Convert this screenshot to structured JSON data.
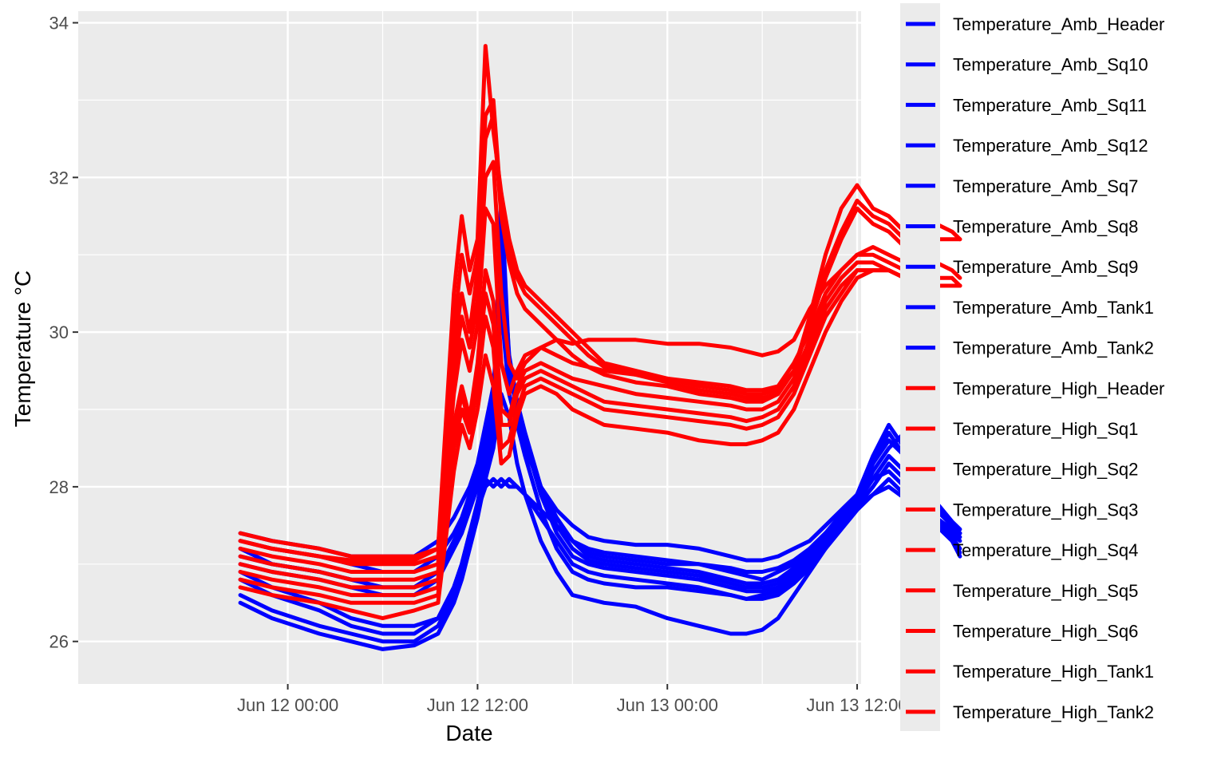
{
  "chart_data": {
    "type": "line",
    "title": "",
    "xlabel": "Date",
    "ylabel": "Temperature °C",
    "x_unit": "hours since Jun 12 00:00",
    "xlim": [
      -13.25,
      36.25
    ],
    "ylim": [
      25.45,
      34.15
    ],
    "x_ticks": [
      {
        "value": 0,
        "label": "Jun 12 00:00"
      },
      {
        "value": 12,
        "label": "Jun 12 12:00"
      },
      {
        "value": 24,
        "label": "Jun 13 00:00"
      },
      {
        "value": 36,
        "label": "Jun 13 12:00"
      }
    ],
    "y_ticks": [
      26,
      28,
      30,
      32,
      34
    ],
    "grid": true,
    "legend_position": "right",
    "x": [
      -3,
      -1,
      2,
      4,
      6,
      8,
      9.5,
      10.5,
      11,
      11.5,
      12,
      12.5,
      13,
      13.5,
      14,
      14.5,
      15,
      16,
      17,
      18,
      19,
      20,
      22,
      24,
      26,
      28,
      29,
      30,
      31,
      32,
      33,
      34,
      35,
      36,
      37,
      38,
      39,
      40,
      41,
      42,
      42.5
    ],
    "series": [
      {
        "name": "Temperature_Amb_Header",
        "color": "#0000ff",
        "values": [
          27.4,
          27.3,
          27.2,
          27.1,
          27.1,
          27.1,
          27.3,
          27.6,
          27.8,
          28.0,
          28.3,
          28.8,
          29.3,
          30.5,
          29.2,
          28.8,
          28.5,
          28.0,
          27.7,
          27.5,
          27.35,
          27.3,
          27.25,
          27.25,
          27.2,
          27.1,
          27.05,
          27.05,
          27.1,
          27.2,
          27.3,
          27.5,
          27.7,
          27.9,
          28.1,
          28.2,
          28.0,
          27.8,
          27.6,
          27.45,
          27.35
        ]
      },
      {
        "name": "Temperature_Amb_Sq10",
        "color": "#0000ff",
        "values": [
          27.3,
          27.2,
          27.1,
          27.0,
          26.9,
          26.9,
          27.1,
          27.4,
          27.6,
          27.9,
          28.2,
          28.7,
          29.1,
          31.5,
          29.5,
          29.0,
          28.6,
          28.0,
          27.6,
          27.3,
          27.15,
          27.1,
          27.05,
          27.0,
          27.0,
          26.9,
          26.85,
          26.8,
          26.9,
          27.0,
          27.2,
          27.4,
          27.6,
          27.9,
          28.3,
          28.6,
          28.4,
          28.0,
          27.7,
          27.5,
          27.4
        ]
      },
      {
        "name": "Temperature_Amb_Sq11",
        "color": "#0000ff",
        "values": [
          27.2,
          27.0,
          26.9,
          26.8,
          26.7,
          26.7,
          26.9,
          27.3,
          27.5,
          27.8,
          28.1,
          28.5,
          29.0,
          31.2,
          29.7,
          29.1,
          28.7,
          28.0,
          27.6,
          27.3,
          27.1,
          27.05,
          27.0,
          26.95,
          26.9,
          26.8,
          26.75,
          26.75,
          26.8,
          26.95,
          27.15,
          27.4,
          27.65,
          27.9,
          28.4,
          28.8,
          28.5,
          28.1,
          27.8,
          27.55,
          27.45
        ]
      },
      {
        "name": "Temperature_Amb_Sq12",
        "color": "#0000ff",
        "values": [
          27.0,
          26.9,
          26.8,
          26.7,
          26.6,
          26.6,
          26.8,
          27.2,
          27.4,
          27.7,
          28.0,
          28.4,
          28.9,
          31.8,
          29.6,
          29.0,
          28.6,
          27.9,
          27.5,
          27.2,
          27.05,
          27.0,
          26.95,
          26.9,
          26.85,
          26.75,
          26.7,
          26.7,
          26.75,
          26.9,
          27.1,
          27.35,
          27.6,
          27.85,
          28.3,
          28.7,
          28.4,
          28.0,
          27.7,
          27.5,
          27.4
        ]
      },
      {
        "name": "Temperature_Amb_Sq7",
        "color": "#0000ff",
        "values": [
          26.9,
          26.7,
          26.5,
          26.3,
          26.2,
          26.2,
          26.3,
          26.7,
          27.0,
          27.4,
          27.8,
          28.3,
          28.9,
          30.8,
          29.5,
          29.0,
          28.6,
          27.9,
          27.4,
          27.1,
          27.0,
          26.95,
          26.9,
          26.85,
          26.8,
          26.7,
          26.65,
          26.65,
          26.7,
          26.85,
          27.05,
          27.3,
          27.55,
          27.8,
          28.1,
          28.4,
          28.2,
          27.9,
          27.6,
          27.4,
          27.3
        ]
      },
      {
        "name": "Temperature_Amb_Sq8",
        "color": "#0000ff",
        "values": [
          26.6,
          26.4,
          26.2,
          26.1,
          26.0,
          26.0,
          26.2,
          26.6,
          26.9,
          27.3,
          27.7,
          28.2,
          28.7,
          30.3,
          29.2,
          28.8,
          28.4,
          27.7,
          27.2,
          26.9,
          26.8,
          26.75,
          26.7,
          26.7,
          26.65,
          26.6,
          26.55,
          26.6,
          26.65,
          26.8,
          27.0,
          27.25,
          27.5,
          27.75,
          28.0,
          28.3,
          28.1,
          27.8,
          27.55,
          27.35,
          27.2
        ]
      },
      {
        "name": "Temperature_Amb_Sq9",
        "color": "#0000ff",
        "values": [
          26.5,
          26.3,
          26.1,
          26.0,
          25.9,
          25.95,
          26.1,
          26.5,
          26.8,
          27.2,
          27.6,
          28.1,
          28.5,
          29.2,
          28.9,
          28.3,
          27.9,
          27.3,
          26.9,
          26.6,
          26.55,
          26.5,
          26.45,
          26.3,
          26.2,
          26.1,
          26.1,
          26.15,
          26.3,
          26.6,
          26.9,
          27.2,
          27.5,
          27.75,
          27.9,
          28.1,
          27.9,
          27.7,
          27.5,
          27.3,
          27.1
        ]
      },
      {
        "name": "Temperature_Amb_Tank1",
        "color": "#0000ff",
        "values": [
          27.1,
          27.0,
          26.9,
          26.8,
          26.7,
          26.7,
          26.9,
          27.3,
          27.5,
          27.8,
          28.0,
          28.1,
          28.0,
          28.1,
          28.0,
          28.0,
          27.9,
          27.7,
          27.5,
          27.3,
          27.2,
          27.15,
          27.1,
          27.05,
          27.0,
          26.95,
          26.9,
          26.9,
          26.95,
          27.05,
          27.2,
          27.4,
          27.6,
          27.8,
          28.2,
          28.5,
          28.7,
          29.2,
          27.8,
          27.5,
          27.4
        ]
      },
      {
        "name": "Temperature_Amb_Tank2",
        "color": "#0000ff",
        "values": [
          26.8,
          26.6,
          26.4,
          26.2,
          26.1,
          26.1,
          26.3,
          26.7,
          27.0,
          27.4,
          27.7,
          28.0,
          28.1,
          28.0,
          28.1,
          28.0,
          27.9,
          27.6,
          27.3,
          27.0,
          26.9,
          26.85,
          26.8,
          26.75,
          26.7,
          26.6,
          26.55,
          26.55,
          26.6,
          26.75,
          26.95,
          27.2,
          27.45,
          27.7,
          27.9,
          28.0,
          27.85,
          27.7,
          27.5,
          27.3,
          27.15
        ]
      },
      {
        "name": "Temperature_High_Header",
        "color": "#ff0000",
        "values": [
          27.4,
          27.3,
          27.2,
          27.1,
          27.1,
          27.1,
          27.2,
          30.5,
          31.5,
          30.8,
          31.2,
          33.7,
          32.6,
          31.8,
          31.2,
          30.8,
          30.6,
          30.4,
          30.2,
          30.0,
          29.8,
          29.6,
          29.5,
          29.4,
          29.3,
          29.25,
          29.2,
          29.2,
          29.25,
          29.5,
          30.2,
          31.0,
          31.6,
          31.9,
          31.6,
          31.5,
          31.3,
          31.2,
          31.4,
          31.3,
          31.2
        ]
      },
      {
        "name": "Temperature_High_Sq1",
        "color": "#ff0000",
        "values": [
          27.3,
          27.2,
          27.1,
          27.0,
          27.0,
          27.0,
          27.1,
          29.8,
          30.5,
          30.0,
          30.8,
          32.5,
          32.8,
          31.5,
          30.9,
          30.5,
          30.3,
          30.1,
          29.9,
          29.7,
          29.55,
          29.45,
          29.35,
          29.3,
          29.2,
          29.15,
          29.1,
          29.1,
          29.2,
          29.5,
          30.1,
          30.7,
          31.2,
          31.6,
          31.4,
          31.3,
          31.1,
          31.0,
          30.9,
          30.8,
          30.7
        ]
      },
      {
        "name": "Temperature_High_Sq2",
        "color": "#ff0000",
        "values": [
          27.2,
          27.1,
          27.0,
          26.9,
          26.9,
          26.9,
          27.0,
          29.5,
          30.2,
          29.8,
          30.4,
          32.0,
          32.2,
          30.5,
          29.6,
          29.4,
          29.6,
          29.8,
          29.9,
          29.85,
          29.9,
          29.9,
          29.9,
          29.85,
          29.85,
          29.8,
          29.75,
          29.7,
          29.75,
          29.9,
          30.3,
          30.6,
          30.8,
          31.0,
          31.1,
          31.0,
          30.9,
          30.8,
          30.7,
          30.7,
          30.6
        ]
      },
      {
        "name": "Temperature_High_Sq3",
        "color": "#ff0000",
        "values": [
          27.1,
          27.0,
          26.9,
          26.8,
          26.8,
          26.8,
          26.9,
          29.2,
          29.9,
          29.5,
          30.1,
          31.6,
          31.4,
          29.6,
          29.2,
          29.5,
          29.7,
          29.8,
          29.7,
          29.6,
          29.55,
          29.5,
          29.45,
          29.4,
          29.35,
          29.3,
          29.25,
          29.25,
          29.3,
          29.6,
          30.0,
          30.5,
          30.8,
          31.0,
          31.0,
          30.9,
          30.8,
          30.7,
          30.6,
          30.6,
          30.6
        ]
      },
      {
        "name": "Temperature_High_Sq4",
        "color": "#ff0000",
        "values": [
          27.0,
          26.9,
          26.8,
          26.7,
          26.7,
          26.7,
          26.8,
          28.8,
          29.3,
          28.9,
          29.6,
          30.8,
          30.4,
          29.0,
          28.9,
          29.3,
          29.5,
          29.6,
          29.5,
          29.4,
          29.35,
          29.3,
          29.2,
          29.15,
          29.1,
          29.05,
          29.0,
          29.0,
          29.1,
          29.4,
          29.9,
          30.4,
          30.7,
          30.9,
          30.9,
          30.8,
          30.7,
          30.6,
          30.6,
          30.6,
          30.6
        ]
      },
      {
        "name": "Temperature_High_Sq5",
        "color": "#ff0000",
        "values": [
          26.8,
          26.7,
          26.6,
          26.5,
          26.5,
          26.5,
          26.6,
          28.5,
          29.0,
          28.7,
          29.3,
          30.2,
          29.8,
          28.5,
          28.6,
          29.0,
          29.3,
          29.4,
          29.3,
          29.2,
          29.1,
          29.0,
          28.95,
          28.9,
          28.85,
          28.8,
          28.75,
          28.8,
          28.9,
          29.2,
          29.7,
          30.2,
          30.5,
          30.8,
          30.8,
          30.8,
          30.7,
          30.6,
          30.6,
          30.6,
          30.6
        ]
      },
      {
        "name": "Temperature_High_Sq6",
        "color": "#ff0000",
        "values": [
          26.7,
          26.6,
          26.5,
          26.4,
          26.3,
          26.4,
          26.5,
          28.2,
          28.8,
          28.5,
          29.0,
          29.7,
          29.3,
          28.3,
          28.4,
          28.9,
          29.2,
          29.3,
          29.2,
          29.0,
          28.9,
          28.8,
          28.75,
          28.7,
          28.6,
          28.55,
          28.55,
          28.6,
          28.7,
          29.0,
          29.5,
          30.0,
          30.4,
          30.7,
          30.8,
          30.8,
          30.7,
          30.6,
          30.6,
          30.6,
          30.6
        ]
      },
      {
        "name": "Temperature_High_Tank1",
        "color": "#ff0000",
        "values": [
          27.3,
          27.2,
          27.1,
          27.05,
          27.05,
          27.05,
          27.2,
          30.0,
          31.0,
          30.5,
          31.0,
          32.8,
          33.0,
          31.6,
          31.0,
          30.7,
          30.5,
          30.3,
          30.1,
          29.9,
          29.7,
          29.55,
          29.45,
          29.35,
          29.25,
          29.2,
          29.15,
          29.15,
          29.2,
          29.5,
          30.1,
          30.8,
          31.3,
          31.7,
          31.5,
          31.4,
          31.2,
          31.1,
          31.2,
          31.2,
          31.2
        ]
      },
      {
        "name": "Temperature_High_Tank2",
        "color": "#ff0000",
        "values": [
          26.9,
          26.8,
          26.7,
          26.6,
          26.6,
          26.6,
          26.7,
          28.6,
          29.2,
          28.8,
          29.5,
          30.5,
          30.1,
          28.8,
          28.8,
          29.2,
          29.4,
          29.5,
          29.4,
          29.3,
          29.2,
          29.1,
          29.05,
          29.0,
          28.95,
          28.9,
          28.85,
          28.9,
          29.0,
          29.3,
          29.8,
          30.3,
          30.6,
          30.8,
          30.8,
          30.8,
          30.7,
          30.6,
          30.6,
          30.6,
          30.6
        ]
      }
    ]
  }
}
